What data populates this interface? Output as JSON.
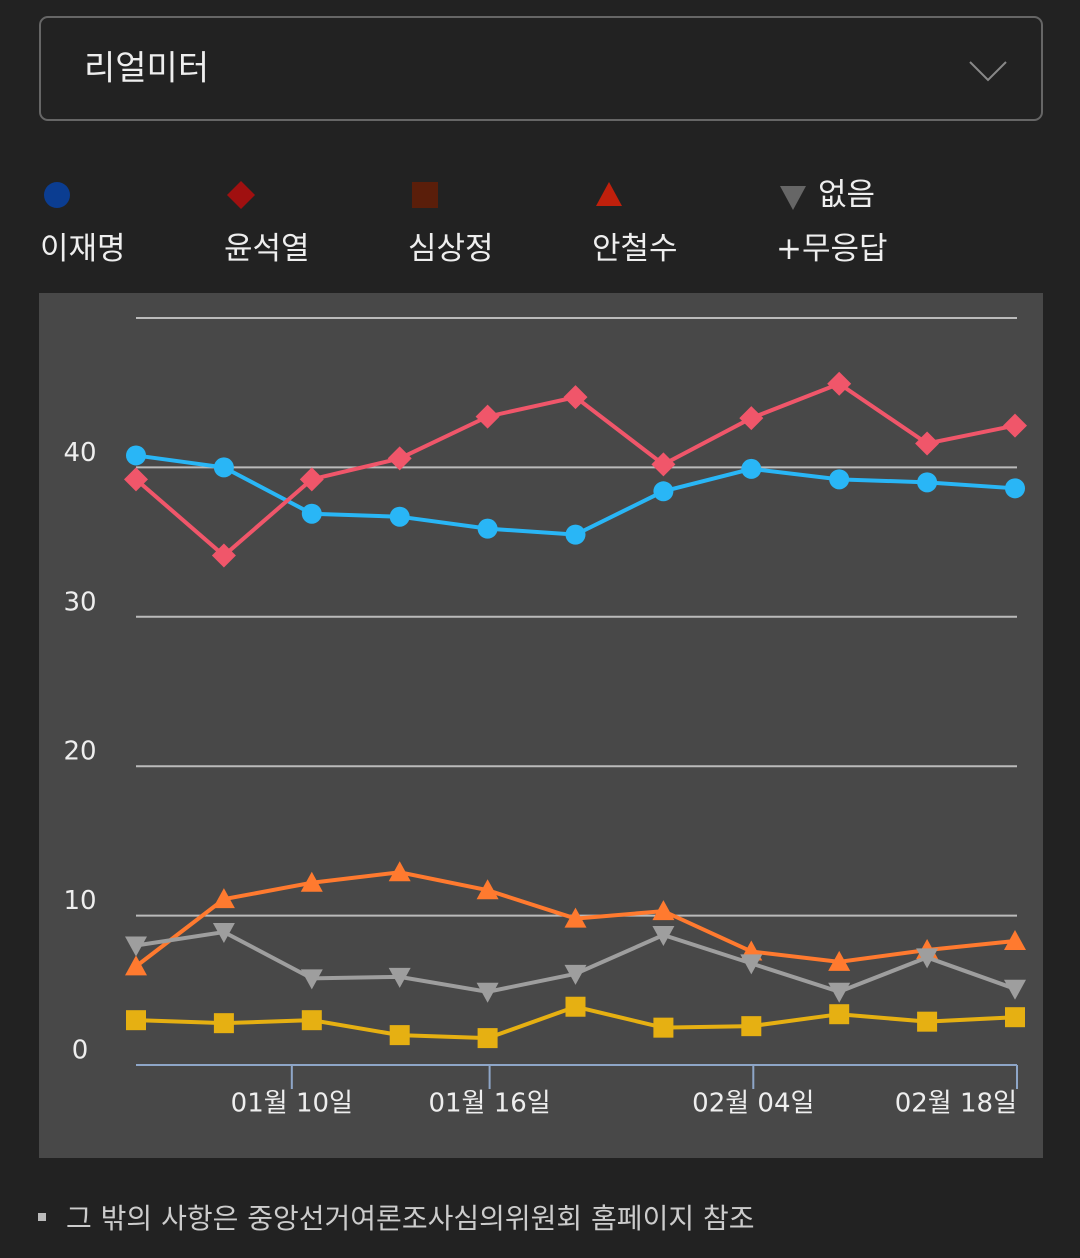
{
  "dropdown": {
    "selected": "리얼미터"
  },
  "chart_data": {
    "type": "line",
    "categories": [
      null,
      null,
      null,
      null,
      null,
      null,
      null,
      null,
      null,
      null,
      null
    ],
    "xticks": [
      {
        "value": 1.75,
        "label": "01월 10일"
      },
      {
        "value": 4,
        "label": "01월 16일"
      },
      {
        "value": 7,
        "label": "02월 04일"
      },
      {
        "value": 10,
        "label": "02월 18일"
      }
    ],
    "ylim": [
      0,
      50
    ],
    "yticks": [
      0,
      10,
      20,
      30,
      40
    ],
    "grid": true,
    "series": [
      {
        "name": "이재명",
        "color": "#29b6f6",
        "legend_color": "#0b3d91",
        "marker": "circle",
        "values": [
          40.8,
          40.0,
          36.9,
          36.7,
          35.9,
          35.5,
          38.4,
          39.9,
          39.2,
          39.0,
          38.6
        ]
      },
      {
        "name": "윤석열",
        "color": "#f0566a",
        "legend_color": "#a01010",
        "marker": "diamond",
        "values": [
          39.2,
          34.1,
          39.2,
          40.6,
          43.4,
          44.7,
          40.2,
          43.3,
          45.6,
          41.6,
          42.8
        ]
      },
      {
        "name": "심상정",
        "color": "#e6b012",
        "legend_color": "#5a1e0a",
        "marker": "square",
        "values": [
          3.0,
          2.8,
          3.0,
          2.0,
          1.8,
          3.9,
          2.5,
          2.6,
          3.4,
          2.9,
          3.2
        ]
      },
      {
        "name": "안철수",
        "color": "#ff7a2f",
        "legend_color": "#c0200c",
        "marker": "triangle-up",
        "values": [
          6.6,
          11.1,
          12.2,
          12.9,
          11.7,
          9.8,
          10.3,
          7.6,
          6.9,
          7.7,
          8.3
        ]
      },
      {
        "name": "없음 +무응답",
        "color": "#9e9e9e",
        "legend_color": "#666666",
        "marker": "triangle-down",
        "values": [
          8.0,
          8.9,
          5.8,
          5.9,
          4.9,
          6.1,
          8.7,
          6.8,
          4.9,
          7.2,
          5.1
        ]
      }
    ]
  },
  "footnote": "그 밖의 사항은 중앙선거여론조사심의위원회 홈페이지 참조"
}
